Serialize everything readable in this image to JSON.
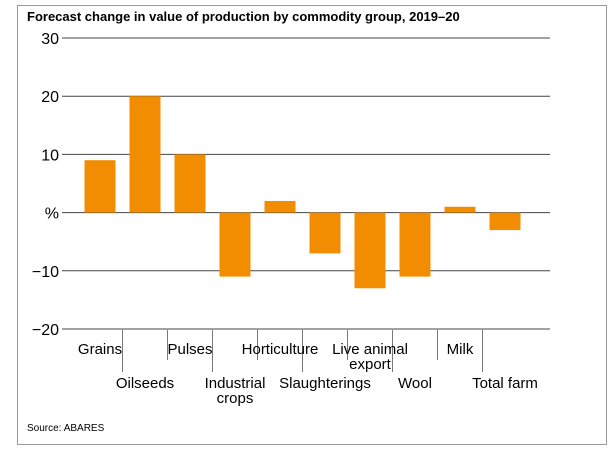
{
  "chart_data": {
    "type": "bar",
    "title": "Forecast change in value of production by commodity group, 2019–20",
    "source": "Source: ABARES",
    "ylabel": "%",
    "ylim": [
      -20,
      30
    ],
    "yticks": [
      30,
      20,
      10,
      0,
      -10,
      -20
    ],
    "ytick_labels": [
      "30",
      "20",
      "10",
      "%",
      "−10",
      "−20"
    ],
    "grid": true,
    "bar_color": "#F28C00",
    "categories": [
      [
        "Grains"
      ],
      [
        "Oilseeds"
      ],
      [
        "Pulses"
      ],
      [
        "Industrial",
        "crops"
      ],
      [
        "Horticulture"
      ],
      [
        "Slaughterings"
      ],
      [
        "Live animal",
        "export"
      ],
      [
        "Wool"
      ],
      [
        "Milk"
      ],
      [
        "Total farm"
      ]
    ],
    "values": [
      9,
      20,
      10,
      -11,
      2,
      -7,
      -13,
      -11,
      1,
      -3
    ]
  }
}
